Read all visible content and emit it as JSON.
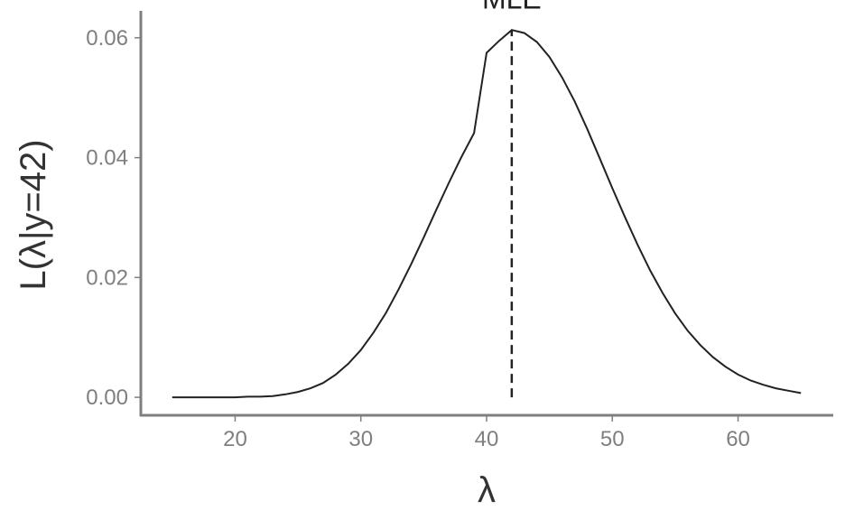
{
  "chart_data": {
    "type": "line",
    "title": "",
    "xlabel": "λ",
    "ylabel": "L(λ|y=42)",
    "xlim": [
      12.5,
      67.5
    ],
    "ylim": [
      -0.003,
      0.0645
    ],
    "x_ticks": [
      20,
      30,
      40,
      50,
      60
    ],
    "x_tick_labels": [
      "20",
      "30",
      "40",
      "50",
      "60"
    ],
    "y_ticks": [
      0.0,
      0.02,
      0.04,
      0.06
    ],
    "y_tick_labels": [
      "0.00",
      "0.02",
      "0.04",
      "0.06"
    ],
    "grid": false,
    "series": [
      {
        "x": [
          15,
          16,
          17,
          18,
          19,
          20,
          21,
          22,
          23,
          24,
          25,
          26,
          27,
          28,
          29,
          30,
          31,
          32,
          33,
          34,
          35,
          36,
          37,
          38,
          39,
          40,
          41,
          42,
          43,
          44,
          45,
          46,
          47,
          48,
          49,
          50,
          51,
          52,
          53,
          54,
          55,
          56,
          57,
          58,
          59,
          60,
          61,
          62,
          63,
          64,
          65
        ],
        "values": [
          0.0,
          0.0,
          0.0,
          0.0,
          0.0,
          0.0,
          0.0001,
          0.0001,
          0.0002,
          0.0005,
          0.0009,
          0.0015,
          0.0024,
          0.0038,
          0.0056,
          0.0079,
          0.0108,
          0.0141,
          0.018,
          0.0222,
          0.0267,
          0.0313,
          0.0358,
          0.0401,
          0.0441,
          0.0575,
          0.0595,
          0.0613,
          0.0608,
          0.0593,
          0.0568,
          0.0534,
          0.0494,
          0.0448,
          0.0399,
          0.0349,
          0.0301,
          0.0255,
          0.0212,
          0.0174,
          0.014,
          0.0111,
          0.0087,
          0.0067,
          0.0051,
          0.0038,
          0.0028,
          0.0021,
          0.0015,
          0.0011,
          0.0007
        ]
      }
    ],
    "annotations": [
      {
        "text": "MLE",
        "x": 42,
        "type": "vertical-dashed-line"
      }
    ]
  }
}
